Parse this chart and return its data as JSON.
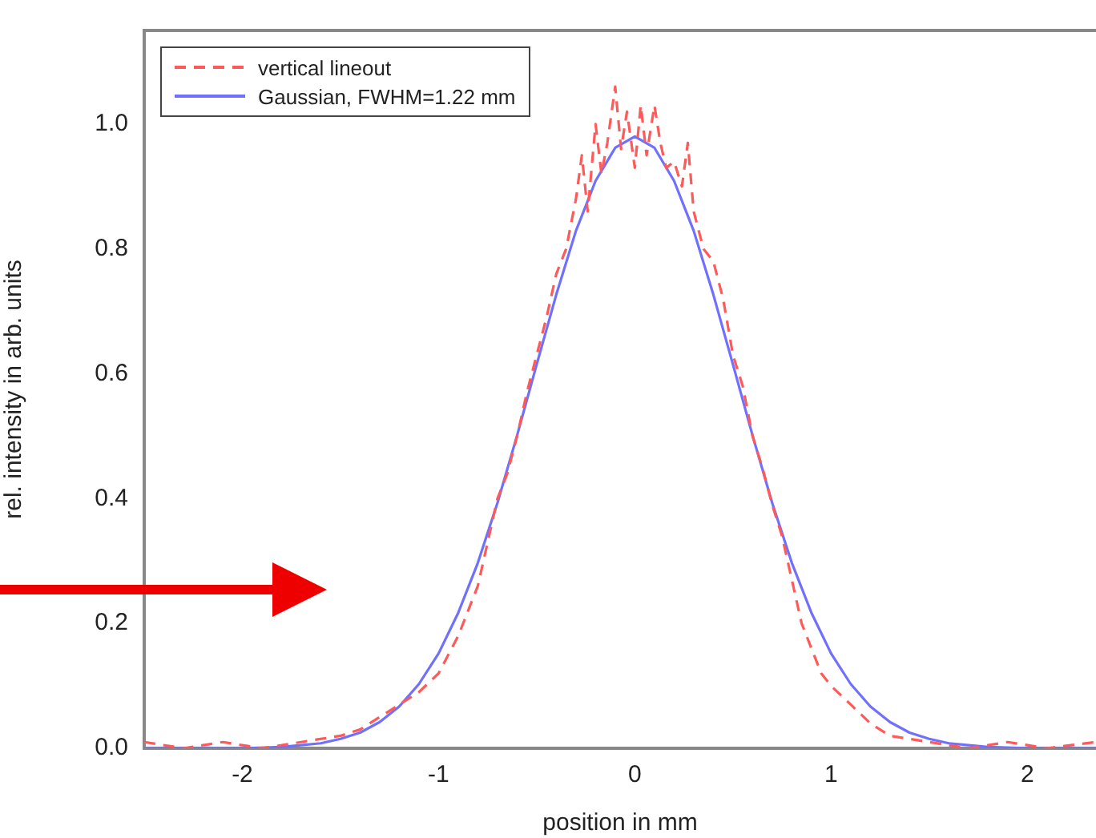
{
  "chart_data": {
    "type": "line",
    "xlabel": "position in mm",
    "ylabel": "rel. intensity in arb. units",
    "xlim": [
      -2.5,
      2.35
    ],
    "xticks": [
      -2,
      -1,
      0,
      1,
      2
    ],
    "ylim": [
      0,
      1.15
    ],
    "yticks": [
      {
        "value": 0,
        "label": "0.0"
      },
      {
        "value": 0.2,
        "label": "0.2"
      },
      {
        "value": 0.4,
        "label": "0.4"
      },
      {
        "value": 0.6,
        "label": "0.6"
      },
      {
        "value": 0.8,
        "label": "0.8"
      },
      {
        "value": 1,
        "label": "1.0"
      }
    ],
    "grid": false,
    "legend": "top left",
    "marker": "none",
    "series": [
      {
        "name": "vertical lineout",
        "color": "#ff5a5a",
        "line_style": "dashed",
        "x": [
          -2.5,
          -2.3,
          -2.1,
          -1.9,
          -1.7,
          -1.5,
          -1.4,
          -1.3,
          -1.2,
          -1.1,
          -1.0,
          -0.95,
          -0.9,
          -0.85,
          -0.8,
          -0.75,
          -0.7,
          -0.65,
          -0.6,
          -0.55,
          -0.5,
          -0.45,
          -0.4,
          -0.35,
          -0.3,
          -0.27,
          -0.24,
          -0.2,
          -0.17,
          -0.14,
          -0.1,
          -0.07,
          -0.04,
          0,
          0.03,
          0.06,
          0.1,
          0.13,
          0.16,
          0.2,
          0.24,
          0.27,
          0.3,
          0.35,
          0.4,
          0.45,
          0.5,
          0.55,
          0.6,
          0.65,
          0.7,
          0.75,
          0.8,
          0.85,
          0.9,
          0.95,
          1.0,
          1.1,
          1.2,
          1.3,
          1.5,
          1.7,
          1.9,
          2.1,
          2.35
        ],
        "values": [
          0.01,
          0.0,
          0.01,
          0.0,
          0.01,
          0.02,
          0.03,
          0.05,
          0.07,
          0.09,
          0.12,
          0.15,
          0.18,
          0.22,
          0.26,
          0.33,
          0.4,
          0.44,
          0.5,
          0.57,
          0.63,
          0.69,
          0.76,
          0.8,
          0.88,
          0.95,
          0.86,
          1.0,
          0.92,
          0.97,
          1.06,
          0.96,
          1.02,
          0.93,
          1.03,
          0.95,
          1.03,
          0.97,
          0.93,
          0.94,
          0.9,
          0.97,
          0.86,
          0.8,
          0.78,
          0.72,
          0.63,
          0.58,
          0.5,
          0.45,
          0.39,
          0.34,
          0.27,
          0.2,
          0.16,
          0.12,
          0.1,
          0.07,
          0.04,
          0.02,
          0.01,
          0.0,
          0.01,
          0.0,
          0.01
        ]
      },
      {
        "name": "Gaussian, FWHM=1.22 mm",
        "color": "#7070ff",
        "line_style": "solid",
        "x": [
          -2.5,
          -2.0,
          -1.8,
          -1.6,
          -1.5,
          -1.4,
          -1.3,
          -1.2,
          -1.1,
          -1.0,
          -0.9,
          -0.8,
          -0.7,
          -0.6,
          -0.5,
          -0.4,
          -0.3,
          -0.2,
          -0.1,
          0,
          0.1,
          0.2,
          0.3,
          0.4,
          0.5,
          0.6,
          0.7,
          0.8,
          0.9,
          1.0,
          1.1,
          1.2,
          1.3,
          1.4,
          1.5,
          1.6,
          1.8,
          2.0,
          2.35
        ],
        "values": [
          0,
          0,
          0.002,
          0.008,
          0.015,
          0.025,
          0.042,
          0.067,
          0.103,
          0.152,
          0.217,
          0.297,
          0.393,
          0.501,
          0.615,
          0.727,
          0.829,
          0.909,
          0.962,
          0.98,
          0.962,
          0.909,
          0.829,
          0.727,
          0.615,
          0.501,
          0.393,
          0.297,
          0.217,
          0.152,
          0.103,
          0.067,
          0.042,
          0.025,
          0.015,
          0.008,
          0.002,
          0,
          0
        ]
      }
    ]
  }
}
